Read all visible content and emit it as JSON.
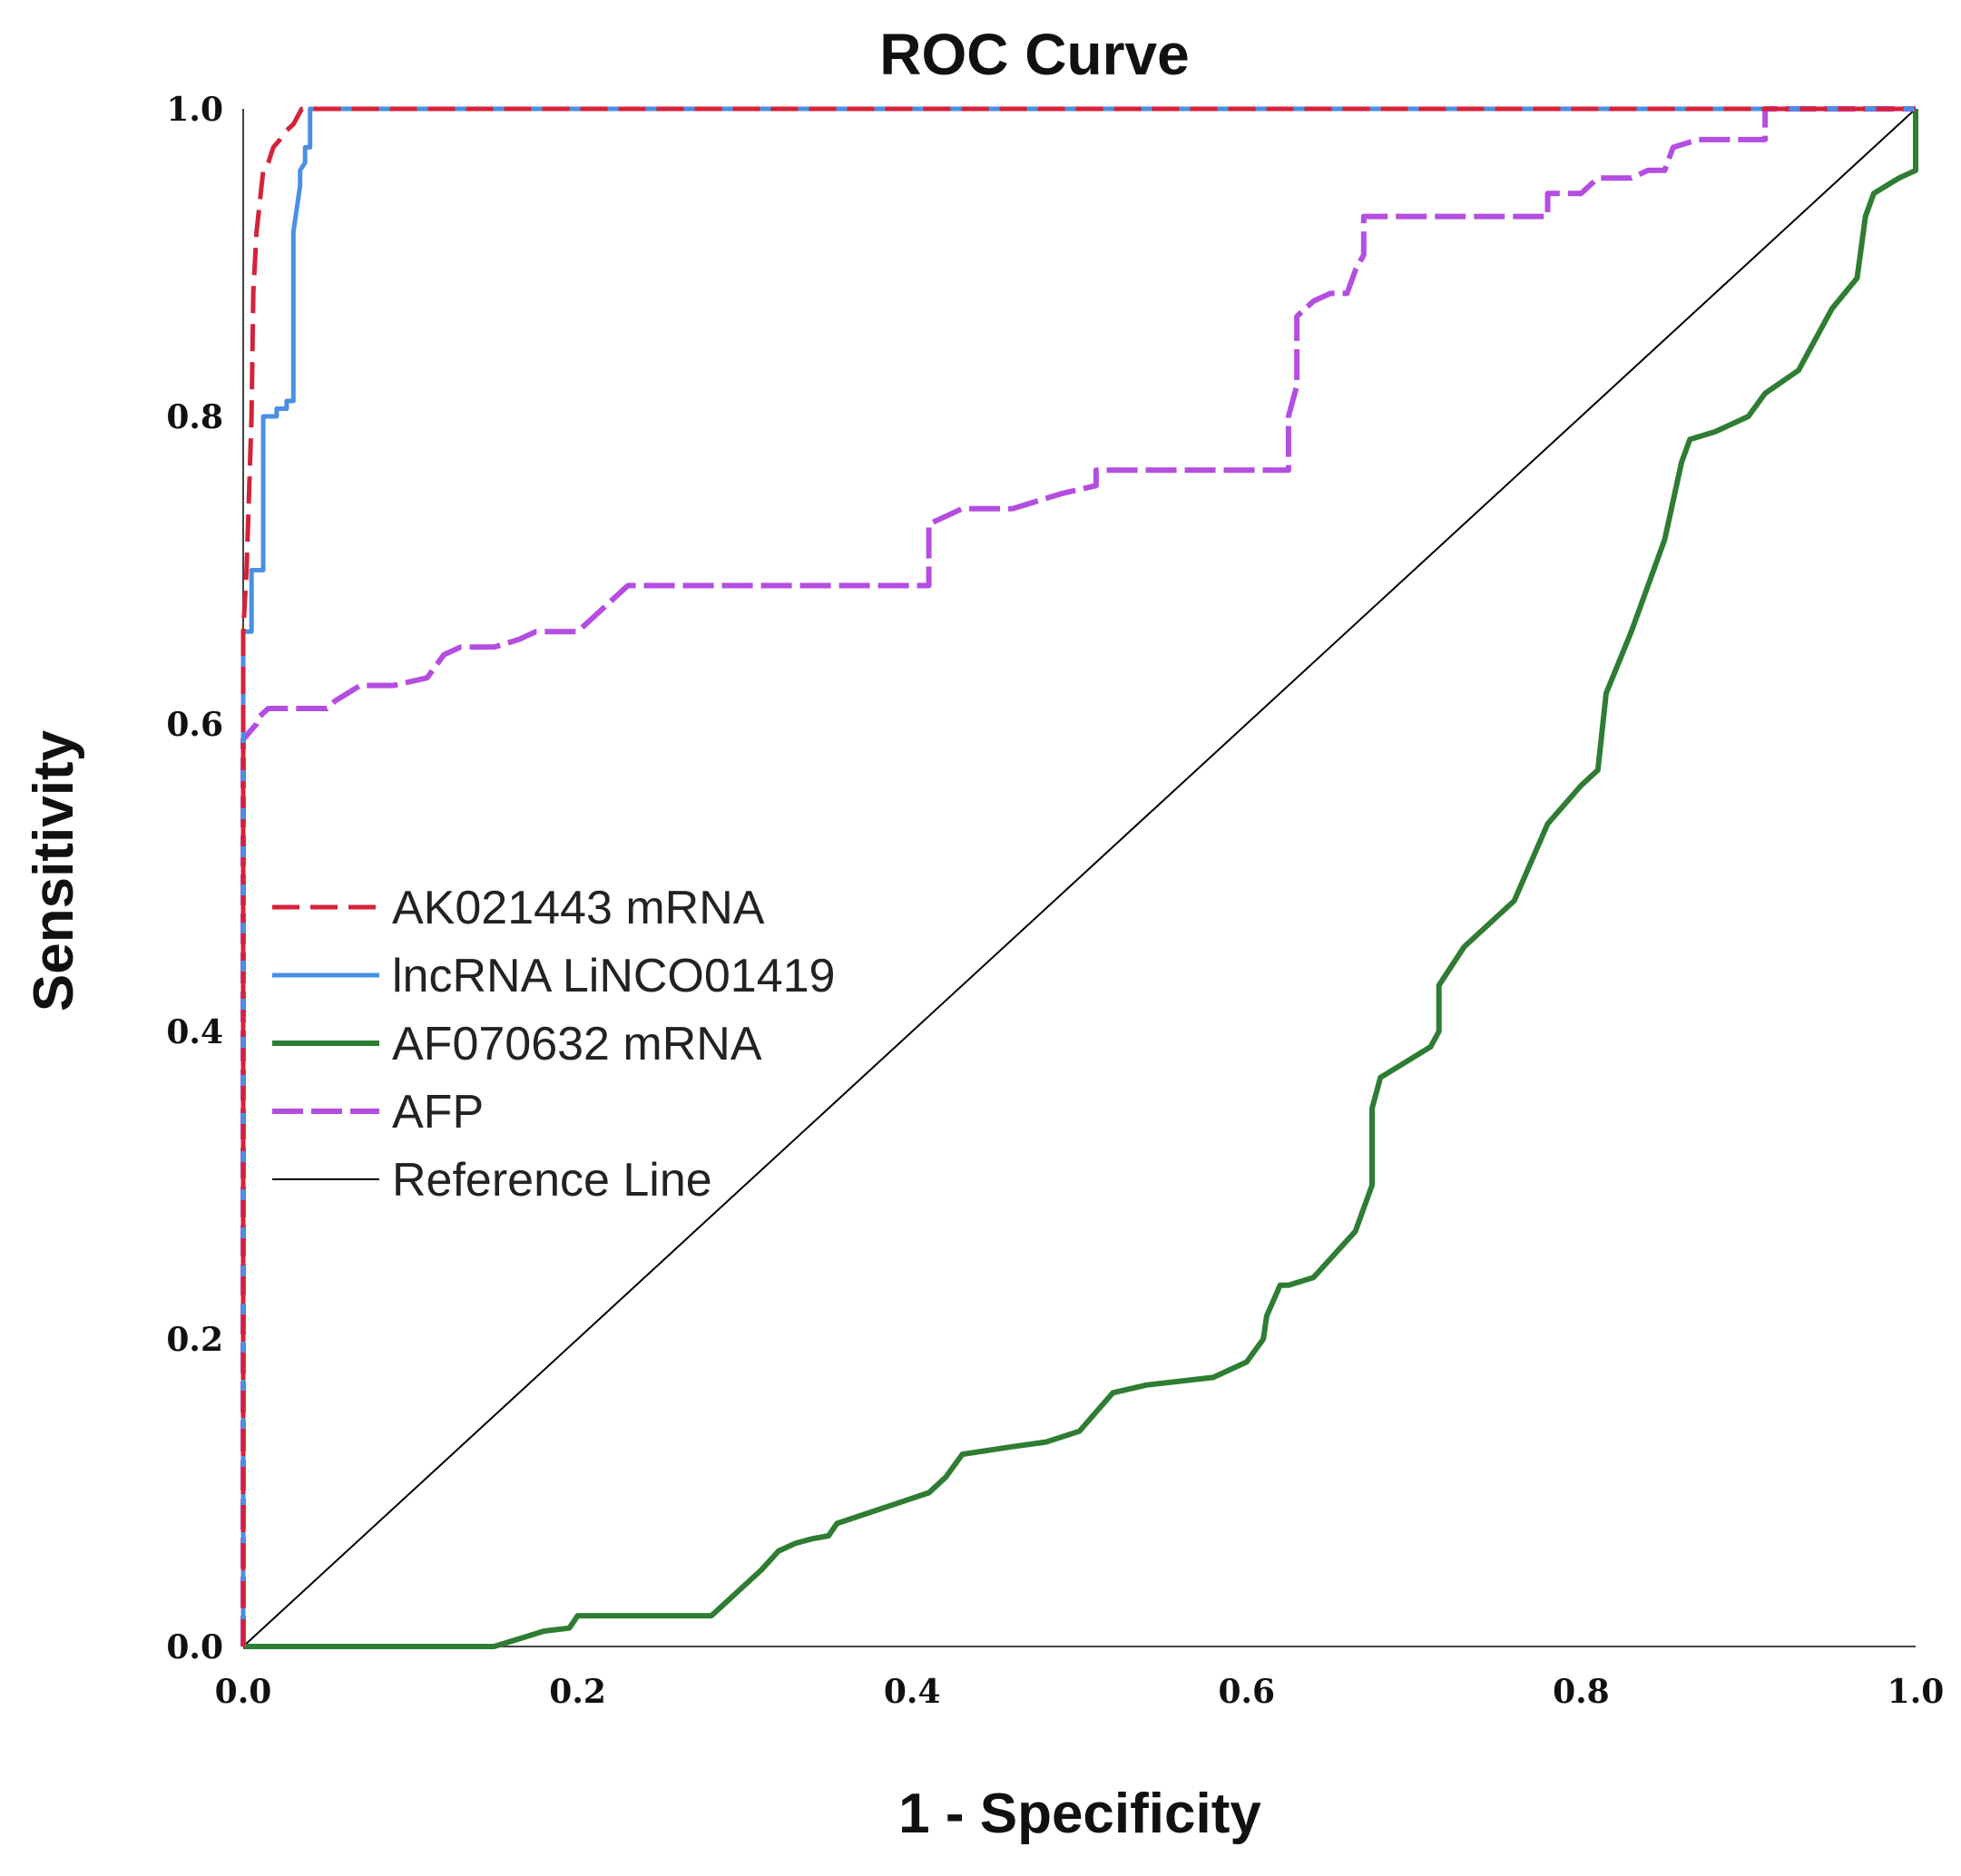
{
  "chart_data": {
    "type": "line",
    "title": "ROC Curve",
    "xlabel": "1 - Specificity",
    "ylabel": "Sensitivity",
    "xlim": [
      0,
      1
    ],
    "ylim": [
      0,
      1
    ],
    "x_ticks": [
      "0.0",
      "0.2",
      "0.4",
      "0.6",
      "0.8",
      "1.0"
    ],
    "y_ticks": [
      "0.0",
      "0.2",
      "0.4",
      "0.6",
      "0.8",
      "1.0"
    ],
    "legend_position": "center-left",
    "series": [
      {
        "name": "AK021443 mRNA",
        "color": "#d6213a",
        "style": "dashed",
        "points": [
          [
            0,
            0
          ],
          [
            0,
            0.66
          ],
          [
            0.002,
            0.7
          ],
          [
            0.005,
            0.8
          ],
          [
            0.006,
            0.88
          ],
          [
            0.008,
            0.92
          ],
          [
            0.012,
            0.96
          ],
          [
            0.015,
            0.965
          ],
          [
            0.018,
            0.975
          ],
          [
            0.022,
            0.98
          ],
          [
            0.025,
            0.985
          ],
          [
            0.03,
            0.99
          ],
          [
            0.035,
            1.0
          ],
          [
            1,
            1
          ]
        ]
      },
      {
        "name": "lncRNA LiNCO01419",
        "color": "#4a90e2",
        "style": "solid",
        "points": [
          [
            0,
            0
          ],
          [
            0,
            0.66
          ],
          [
            0.005,
            0.66
          ],
          [
            0.005,
            0.7
          ],
          [
            0.012,
            0.7
          ],
          [
            0.012,
            0.8
          ],
          [
            0.02,
            0.8
          ],
          [
            0.02,
            0.805
          ],
          [
            0.026,
            0.805
          ],
          [
            0.026,
            0.81
          ],
          [
            0.03,
            0.81
          ],
          [
            0.03,
            0.92
          ],
          [
            0.032,
            0.935
          ],
          [
            0.034,
            0.95
          ],
          [
            0.034,
            0.96
          ],
          [
            0.037,
            0.965
          ],
          [
            0.037,
            0.975
          ],
          [
            0.04,
            0.975
          ],
          [
            0.04,
            1.0
          ],
          [
            1,
            1
          ]
        ]
      },
      {
        "name": "AF070632 mRNA",
        "color": "#2e7d32",
        "style": "solid",
        "points": [
          [
            0,
            0
          ],
          [
            0.15,
            0
          ],
          [
            0.18,
            0.01
          ],
          [
            0.195,
            0.012
          ],
          [
            0.2,
            0.02
          ],
          [
            0.28,
            0.02
          ],
          [
            0.31,
            0.05
          ],
          [
            0.32,
            0.062
          ],
          [
            0.33,
            0.067
          ],
          [
            0.34,
            0.07
          ],
          [
            0.35,
            0.072
          ],
          [
            0.355,
            0.08
          ],
          [
            0.41,
            0.1
          ],
          [
            0.42,
            0.11
          ],
          [
            0.43,
            0.125
          ],
          [
            0.46,
            0.13
          ],
          [
            0.48,
            0.133
          ],
          [
            0.5,
            0.14
          ],
          [
            0.52,
            0.165
          ],
          [
            0.54,
            0.17
          ],
          [
            0.58,
            0.175
          ],
          [
            0.6,
            0.185
          ],
          [
            0.61,
            0.2
          ],
          [
            0.612,
            0.215
          ],
          [
            0.62,
            0.235
          ],
          [
            0.625,
            0.235
          ],
          [
            0.64,
            0.24
          ],
          [
            0.665,
            0.27
          ],
          [
            0.675,
            0.3
          ],
          [
            0.675,
            0.35
          ],
          [
            0.68,
            0.37
          ],
          [
            0.71,
            0.39
          ],
          [
            0.715,
            0.4
          ],
          [
            0.715,
            0.43
          ],
          [
            0.73,
            0.455
          ],
          [
            0.745,
            0.47
          ],
          [
            0.76,
            0.485
          ],
          [
            0.77,
            0.51
          ],
          [
            0.78,
            0.535
          ],
          [
            0.8,
            0.56
          ],
          [
            0.81,
            0.57
          ],
          [
            0.812,
            0.59
          ],
          [
            0.815,
            0.62
          ],
          [
            0.83,
            0.66
          ],
          [
            0.84,
            0.69
          ],
          [
            0.85,
            0.72
          ],
          [
            0.86,
            0.77
          ],
          [
            0.865,
            0.785
          ],
          [
            0.88,
            0.79
          ],
          [
            0.9,
            0.8
          ],
          [
            0.91,
            0.815
          ],
          [
            0.93,
            0.83
          ],
          [
            0.935,
            0.84
          ],
          [
            0.95,
            0.87
          ],
          [
            0.965,
            0.89
          ],
          [
            0.97,
            0.93
          ],
          [
            0.975,
            0.945
          ],
          [
            0.99,
            0.955
          ],
          [
            1,
            0.96
          ],
          [
            1,
            1
          ]
        ]
      },
      {
        "name": "AFP",
        "color": "#b44de0",
        "style": "dashed",
        "points": [
          [
            0,
            0
          ],
          [
            0,
            0.59
          ],
          [
            0.008,
            0.6
          ],
          [
            0.01,
            0.605
          ],
          [
            0.015,
            0.61
          ],
          [
            0.05,
            0.61
          ],
          [
            0.055,
            0.615
          ],
          [
            0.07,
            0.625
          ],
          [
            0.09,
            0.625
          ],
          [
            0.11,
            0.63
          ],
          [
            0.12,
            0.645
          ],
          [
            0.13,
            0.65
          ],
          [
            0.15,
            0.65
          ],
          [
            0.165,
            0.655
          ],
          [
            0.175,
            0.66
          ],
          [
            0.2,
            0.66
          ],
          [
            0.215,
            0.675
          ],
          [
            0.23,
            0.69
          ],
          [
            0.41,
            0.69
          ],
          [
            0.41,
            0.73
          ],
          [
            0.43,
            0.74
          ],
          [
            0.46,
            0.74
          ],
          [
            0.49,
            0.75
          ],
          [
            0.51,
            0.755
          ],
          [
            0.51,
            0.765
          ],
          [
            0.625,
            0.765
          ],
          [
            0.625,
            0.8
          ],
          [
            0.63,
            0.82
          ],
          [
            0.63,
            0.865
          ],
          [
            0.64,
            0.875
          ],
          [
            0.65,
            0.88
          ],
          [
            0.66,
            0.88
          ],
          [
            0.665,
            0.895
          ],
          [
            0.67,
            0.905
          ],
          [
            0.67,
            0.93
          ],
          [
            0.78,
            0.93
          ],
          [
            0.78,
            0.945
          ],
          [
            0.8,
            0.945
          ],
          [
            0.81,
            0.955
          ],
          [
            0.83,
            0.955
          ],
          [
            0.84,
            0.96
          ],
          [
            0.85,
            0.96
          ],
          [
            0.855,
            0.975
          ],
          [
            0.87,
            0.98
          ],
          [
            0.91,
            0.98
          ],
          [
            0.91,
            1.0
          ],
          [
            1,
            1
          ]
        ]
      },
      {
        "name": "Reference Line",
        "color": "#000000",
        "style": "thin",
        "points": [
          [
            0,
            0
          ],
          [
            1,
            1
          ]
        ]
      }
    ]
  }
}
